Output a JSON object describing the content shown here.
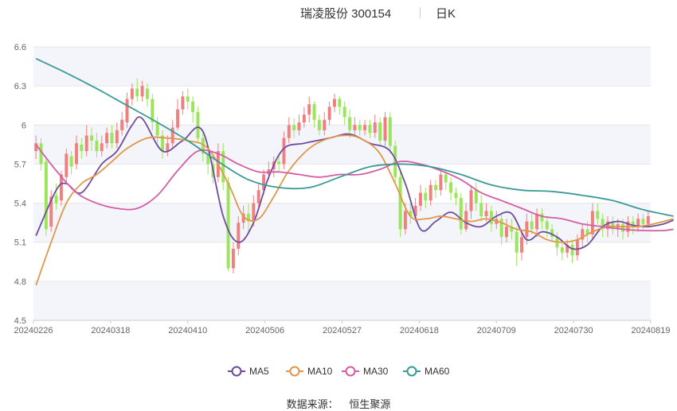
{
  "header": {
    "title": "瑞凌股份 300154",
    "period": "日K"
  },
  "source": {
    "label": "数据来源：",
    "value": "恒生聚源"
  },
  "chart_data": {
    "type": "candlestick",
    "ylim": [
      4.5,
      6.6
    ],
    "y_ticks": [
      "4.5",
      "4.8",
      "5.1",
      "5.4",
      "5.7",
      "6",
      "6.3",
      "6.6"
    ],
    "x_ticks": [
      "20240226",
      "20240318",
      "20240410",
      "20240506",
      "20240527",
      "20240618",
      "20240709",
      "20240730",
      "20240819"
    ],
    "grid": true,
    "legend_position": "bottom",
    "colors": {
      "up": "#f08080",
      "down": "#9be55a",
      "MA5": "#6e4c9e",
      "MA10": "#e0974a",
      "MA30": "#d35ea6",
      "MA60": "#3b9a98"
    },
    "candles": [
      [
        5.8,
        5.86,
        5.92,
        5.74
      ],
      [
        5.86,
        5.7,
        5.9,
        5.65
      ],
      [
        5.72,
        5.2,
        5.75,
        5.15
      ],
      [
        5.22,
        5.45,
        5.5,
        5.18
      ],
      [
        5.46,
        5.4,
        5.55,
        5.35
      ],
      [
        5.42,
        5.62,
        5.65,
        5.38
      ],
      [
        5.6,
        5.78,
        5.82,
        5.55
      ],
      [
        5.76,
        5.68,
        5.8,
        5.62
      ],
      [
        5.7,
        5.86,
        5.92,
        5.66
      ],
      [
        5.85,
        5.8,
        5.9,
        5.74
      ],
      [
        5.8,
        5.92,
        6.0,
        5.76
      ],
      [
        5.92,
        5.88,
        5.98,
        5.8
      ],
      [
        5.88,
        5.8,
        5.94,
        5.75
      ],
      [
        5.8,
        5.86,
        5.92,
        5.76
      ],
      [
        5.86,
        5.94,
        5.98,
        5.82
      ],
      [
        5.94,
        5.86,
        6.0,
        5.82
      ],
      [
        5.86,
        5.96,
        6.02,
        5.82
      ],
      [
        5.96,
        6.04,
        6.1,
        5.92
      ],
      [
        6.02,
        6.2,
        6.25,
        5.98
      ],
      [
        6.2,
        6.28,
        6.32,
        6.15
      ],
      [
        6.28,
        6.22,
        6.36,
        6.18
      ],
      [
        6.22,
        6.3,
        6.34,
        6.18
      ],
      [
        6.28,
        6.2,
        6.32,
        6.14
      ],
      [
        6.2,
        6.02,
        6.24,
        5.96
      ],
      [
        6.02,
        5.92,
        6.06,
        5.86
      ],
      [
        5.92,
        5.8,
        5.96,
        5.74
      ],
      [
        5.8,
        5.86,
        5.92,
        5.76
      ],
      [
        5.86,
        5.98,
        6.04,
        5.82
      ],
      [
        5.98,
        6.12,
        6.2,
        5.96
      ],
      [
        6.12,
        6.22,
        6.26,
        6.08
      ],
      [
        6.22,
        6.18,
        6.28,
        6.12
      ],
      [
        6.18,
        6.1,
        6.22,
        6.02
      ],
      [
        6.1,
        5.9,
        6.14,
        5.86
      ],
      [
        5.9,
        5.78,
        5.94,
        5.72
      ],
      [
        5.78,
        5.7,
        5.82,
        5.62
      ],
      [
        5.7,
        5.6,
        5.76,
        5.55
      ],
      [
        5.6,
        5.8,
        5.86,
        5.56
      ],
      [
        5.8,
        5.56,
        5.86,
        5.5
      ],
      [
        5.56,
        4.9,
        5.6,
        4.88
      ],
      [
        4.9,
        5.05,
        5.1,
        4.86
      ],
      [
        5.05,
        5.25,
        5.3,
        5.0
      ],
      [
        5.25,
        5.32,
        5.38,
        5.2
      ],
      [
        5.32,
        5.26,
        5.4,
        5.18
      ],
      [
        5.26,
        5.4,
        5.46,
        5.22
      ],
      [
        5.4,
        5.5,
        5.56,
        5.36
      ],
      [
        5.5,
        5.62,
        5.66,
        5.46
      ],
      [
        5.62,
        5.66,
        5.72,
        5.58
      ],
      [
        5.66,
        5.72,
        5.76,
        5.6
      ],
      [
        5.72,
        5.7,
        5.78,
        5.64
      ],
      [
        5.7,
        5.9,
        5.95,
        5.66
      ],
      [
        5.9,
        6.0,
        6.06,
        5.86
      ],
      [
        6.0,
        5.96,
        6.05,
        5.9
      ],
      [
        5.96,
        6.02,
        6.08,
        5.92
      ],
      [
        6.02,
        6.08,
        6.14,
        5.98
      ],
      [
        6.08,
        6.16,
        6.22,
        6.02
      ],
      [
        6.16,
        6.04,
        6.18,
        5.98
      ],
      [
        6.04,
        5.96,
        6.08,
        5.92
      ],
      [
        5.96,
        6.04,
        6.1,
        5.92
      ],
      [
        6.04,
        6.14,
        6.18,
        6.0
      ],
      [
        6.14,
        6.2,
        6.24,
        6.1
      ],
      [
        6.2,
        6.14,
        6.22,
        6.08
      ],
      [
        6.14,
        6.06,
        6.18,
        6.0
      ],
      [
        6.06,
        5.96,
        6.12,
        5.9
      ],
      [
        5.96,
        6.0,
        6.06,
        5.92
      ],
      [
        6.0,
        5.96,
        6.04,
        5.92
      ],
      [
        5.96,
        6.0,
        6.04,
        5.92
      ],
      [
        6.0,
        5.94,
        6.04,
        5.9
      ],
      [
        5.94,
        6.02,
        6.08,
        5.9
      ],
      [
        6.02,
        5.88,
        6.06,
        5.84
      ],
      [
        5.88,
        6.06,
        6.1,
        5.84
      ],
      [
        6.06,
        5.84,
        6.1,
        5.78
      ],
      [
        5.84,
        5.6,
        5.88,
        5.54
      ],
      [
        5.6,
        5.2,
        5.64,
        5.14
      ],
      [
        5.2,
        5.34,
        5.4,
        5.16
      ],
      [
        5.34,
        5.3,
        5.4,
        5.24
      ],
      [
        5.3,
        5.38,
        5.44,
        5.26
      ],
      [
        5.38,
        5.48,
        5.54,
        5.34
      ],
      [
        5.48,
        5.42,
        5.52,
        5.36
      ],
      [
        5.42,
        5.54,
        5.58,
        5.38
      ],
      [
        5.54,
        5.5,
        5.58,
        5.44
      ],
      [
        5.5,
        5.62,
        5.66,
        5.46
      ],
      [
        5.62,
        5.56,
        5.66,
        5.5
      ],
      [
        5.56,
        5.48,
        5.6,
        5.42
      ],
      [
        5.48,
        5.44,
        5.52,
        5.38
      ],
      [
        5.44,
        5.2,
        5.48,
        5.16
      ],
      [
        5.2,
        5.34,
        5.4,
        5.18
      ],
      [
        5.34,
        5.5,
        5.54,
        5.28
      ],
      [
        5.5,
        5.4,
        5.56,
        5.34
      ],
      [
        5.4,
        5.3,
        5.46,
        5.26
      ],
      [
        5.3,
        5.34,
        5.4,
        5.26
      ],
      [
        5.34,
        5.24,
        5.38,
        5.18
      ],
      [
        5.24,
        5.28,
        5.34,
        5.2
      ],
      [
        5.28,
        5.14,
        5.32,
        5.08
      ],
      [
        5.14,
        5.22,
        5.28,
        5.1
      ],
      [
        5.22,
        5.18,
        5.28,
        5.12
      ],
      [
        5.18,
        5.02,
        5.22,
        4.92
      ],
      [
        5.02,
        5.14,
        5.2,
        4.96
      ],
      [
        5.14,
        5.26,
        5.32,
        5.08
      ],
      [
        5.26,
        5.2,
        5.32,
        5.16
      ],
      [
        5.2,
        5.32,
        5.36,
        5.14
      ],
      [
        5.32,
        5.26,
        5.36,
        5.2
      ],
      [
        5.26,
        5.2,
        5.3,
        5.14
      ],
      [
        5.2,
        5.14,
        5.24,
        5.1
      ],
      [
        5.14,
        5.06,
        5.18,
        5.0
      ],
      [
        5.06,
        5.02,
        5.12,
        4.96
      ],
      [
        5.02,
        5.08,
        5.12,
        4.98
      ],
      [
        5.08,
        5.0,
        5.12,
        4.94
      ],
      [
        5.0,
        5.12,
        5.16,
        4.96
      ],
      [
        5.12,
        5.2,
        5.24,
        5.06
      ],
      [
        5.2,
        5.16,
        5.26,
        5.1
      ],
      [
        5.16,
        5.34,
        5.4,
        5.12
      ],
      [
        5.34,
        5.28,
        5.4,
        5.24
      ],
      [
        5.28,
        5.2,
        5.32,
        5.14
      ],
      [
        5.2,
        5.26,
        5.3,
        5.14
      ],
      [
        5.26,
        5.2,
        5.3,
        5.16
      ],
      [
        5.2,
        5.24,
        5.28,
        5.14
      ],
      [
        5.24,
        5.18,
        5.28,
        5.12
      ],
      [
        5.18,
        5.26,
        5.3,
        5.14
      ],
      [
        5.26,
        5.22,
        5.3,
        5.16
      ],
      [
        5.22,
        5.28,
        5.32,
        5.18
      ],
      [
        5.28,
        5.24,
        5.32,
        5.2
      ],
      [
        5.24,
        5.3,
        5.34,
        5.22
      ]
    ],
    "ma": [
      {
        "name": "MA5",
        "key_x": [
          0,
          4,
          6,
          9,
          13,
          16,
          19,
          21,
          25,
          29,
          33,
          37,
          40,
          43,
          46,
          49,
          53,
          58,
          62,
          66,
          70,
          73,
          76,
          79,
          82,
          85,
          88,
          91,
          94,
          97,
          100,
          103,
          106,
          109,
          112,
          115,
          118,
          121,
          124,
          126
        ],
        "values": [
          5.15,
          5.5,
          5.55,
          5.48,
          5.7,
          5.8,
          6.0,
          6.05,
          5.8,
          5.88,
          5.95,
          5.3,
          5.1,
          5.25,
          5.6,
          5.82,
          5.86,
          5.9,
          5.93,
          5.86,
          5.8,
          5.55,
          5.2,
          5.26,
          5.33,
          5.25,
          5.22,
          5.3,
          5.32,
          5.12,
          5.18,
          5.14,
          5.05,
          5.08,
          5.22,
          5.26,
          5.23,
          5.22,
          5.24,
          5.27
        ]
      },
      {
        "name": "MA10",
        "key_x": [
          0,
          3,
          6,
          9,
          12,
          15,
          18,
          22,
          26,
          30,
          34,
          38,
          41,
          44,
          47,
          50,
          54,
          58,
          62,
          65,
          68,
          71,
          74,
          77,
          80,
          83,
          86,
          89,
          92,
          95,
          98,
          101,
          104,
          107,
          110,
          113,
          116,
          119,
          122,
          126
        ],
        "values": [
          4.77,
          5.1,
          5.4,
          5.55,
          5.62,
          5.72,
          5.82,
          5.9,
          5.9,
          5.88,
          5.82,
          5.55,
          5.3,
          5.28,
          5.45,
          5.65,
          5.82,
          5.9,
          5.92,
          5.88,
          5.78,
          5.55,
          5.3,
          5.28,
          5.3,
          5.28,
          5.26,
          5.28,
          5.25,
          5.2,
          5.18,
          5.12,
          5.1,
          5.12,
          5.18,
          5.22,
          5.22,
          5.22,
          5.24,
          5.28
        ]
      },
      {
        "name": "MA30",
        "key_x": [
          0,
          4,
          8,
          12,
          16,
          20,
          24,
          28,
          32,
          36,
          40,
          44,
          48,
          52,
          56,
          60,
          64,
          68,
          72,
          76,
          80,
          84,
          88,
          92,
          96,
          100,
          104,
          108,
          112,
          116,
          120,
          124,
          126
        ],
        "values": [
          5.85,
          5.65,
          5.48,
          5.4,
          5.36,
          5.36,
          5.46,
          5.65,
          5.8,
          5.78,
          5.7,
          5.64,
          5.64,
          5.62,
          5.6,
          5.62,
          5.62,
          5.66,
          5.72,
          5.7,
          5.65,
          5.58,
          5.48,
          5.42,
          5.36,
          5.3,
          5.28,
          5.24,
          5.22,
          5.2,
          5.19,
          5.19,
          5.2
        ]
      },
      {
        "name": "MA60",
        "key_x": [
          0,
          6,
          12,
          18,
          24,
          30,
          36,
          42,
          48,
          54,
          60,
          66,
          72,
          78,
          84,
          90,
          96,
          102,
          108,
          114,
          120,
          126
        ],
        "values": [
          6.51,
          6.4,
          6.28,
          6.15,
          6.02,
          5.88,
          5.72,
          5.58,
          5.52,
          5.52,
          5.6,
          5.68,
          5.7,
          5.68,
          5.62,
          5.54,
          5.5,
          5.49,
          5.46,
          5.42,
          5.35,
          5.3
        ]
      }
    ]
  }
}
